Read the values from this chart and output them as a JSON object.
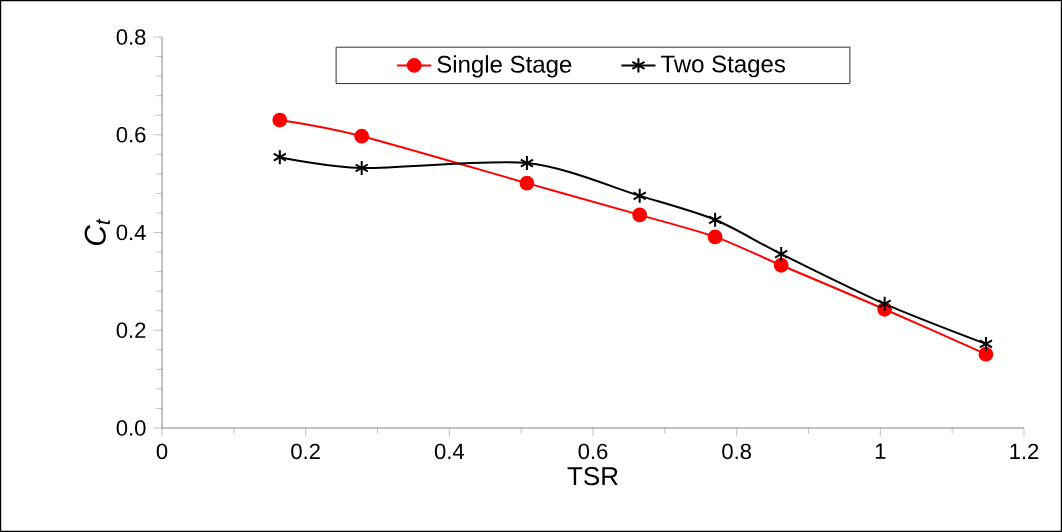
{
  "chart_data": {
    "type": "line",
    "xlabel": "TSR",
    "ylabel": "C$_{t}$",
    "series": [
      {
        "name": "Single Stage",
        "color": "#ff0000",
        "marker": "circle",
        "x": [
          0.164,
          0.278,
          0.508,
          0.665,
          0.77,
          0.862,
          1.006,
          1.147
        ],
        "values": [
          0.63,
          0.597,
          0.501,
          0.436,
          0.391,
          0.333,
          0.243,
          0.151
        ]
      },
      {
        "name": "Two Stages",
        "color": "#000000",
        "marker": "cross",
        "x": [
          0.164,
          0.278,
          0.508,
          0.665,
          0.77,
          0.862,
          1.006,
          1.147
        ],
        "values": [
          0.554,
          0.532,
          0.542,
          0.475,
          0.426,
          0.356,
          0.254,
          0.172
        ]
      }
    ],
    "xlim": [
      0,
      1.2
    ],
    "xticks": [
      0,
      0.2,
      0.4,
      0.6,
      0.8,
      1,
      1.2
    ],
    "ylim": [
      0,
      0.8
    ],
    "yticks": [
      {
        "value": 0,
        "label": "0.0"
      },
      {
        "value": 0.2,
        "label": "0.2"
      },
      {
        "value": 0.4,
        "label": "0.4"
      },
      {
        "value": 0.6,
        "label": "0.6"
      },
      {
        "value": 0.8,
        "label": "0.8"
      }
    ],
    "legend": "top",
    "line_style": "solid"
  }
}
